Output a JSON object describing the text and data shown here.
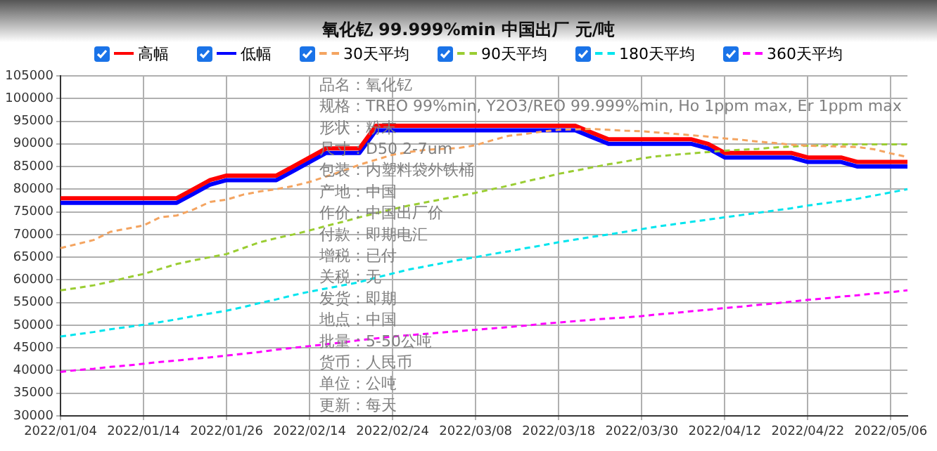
{
  "chart_data": {
    "type": "line",
    "title": "氧化钇 99.999%min 中国出厂 元/吨",
    "categories": [
      "2022/01/04",
      null,
      null,
      null,
      null,
      "2022/01/14",
      null,
      null,
      null,
      null,
      "2022/01/26",
      null,
      null,
      null,
      null,
      "2022/02/14",
      null,
      null,
      null,
      null,
      "2022/02/24",
      null,
      null,
      null,
      null,
      "2022/03/08",
      null,
      null,
      null,
      null,
      "2022/03/18",
      null,
      null,
      null,
      null,
      "2022/03/30",
      null,
      null,
      null,
      null,
      "2022/04/12",
      null,
      null,
      null,
      null,
      "2022/04/22",
      null,
      null,
      null,
      null,
      "2022/05/06",
      null
    ],
    "ylim": [
      30000,
      105000
    ],
    "yticks": [
      30000,
      35000,
      40000,
      45000,
      50000,
      55000,
      60000,
      65000,
      70000,
      75000,
      80000,
      85000,
      90000,
      95000,
      100000,
      105000
    ],
    "grid": true,
    "legend": "top",
    "marker": "none",
    "series": [
      {
        "name": "高幅",
        "color": "#ff0000",
        "line_style": "solid",
        "values": [
          78000,
          78000,
          78000,
          78000,
          78000,
          78000,
          78000,
          78000,
          80000,
          82000,
          83000,
          83000,
          83000,
          83000,
          85000,
          87000,
          89000,
          89000,
          89000,
          94000,
          94000,
          94000,
          94000,
          94000,
          94000,
          94000,
          94000,
          94000,
          94000,
          94000,
          94000,
          94000,
          92500,
          91000,
          91000,
          91000,
          91000,
          91000,
          91000,
          90000,
          88000,
          88000,
          88000,
          88000,
          88000,
          87000,
          87000,
          87000,
          86000,
          86000,
          86000,
          86000
        ]
      },
      {
        "name": "低幅",
        "color": "#0000ff",
        "line_style": "solid",
        "values": [
          77000,
          77000,
          77000,
          77000,
          77000,
          77000,
          77000,
          77000,
          79000,
          81000,
          82000,
          82000,
          82000,
          82000,
          84000,
          86000,
          88000,
          88000,
          88000,
          93000,
          93000,
          93000,
          93000,
          93000,
          93000,
          93000,
          93000,
          93000,
          93000,
          93000,
          93000,
          93000,
          91500,
          90000,
          90000,
          90000,
          90000,
          90000,
          90000,
          89000,
          87000,
          87000,
          87000,
          87000,
          87000,
          86000,
          86000,
          86000,
          85000,
          85000,
          85000,
          85000
        ]
      },
      {
        "name": "30天平均",
        "color": "#f4a460",
        "line_style": "dashed",
        "values": [
          67000,
          67900,
          68800,
          70600,
          71300,
          72000,
          73800,
          74200,
          75500,
          77200,
          77700,
          78800,
          79500,
          80000,
          80700,
          81600,
          82800,
          84000,
          85400,
          86500,
          87600,
          88200,
          88700,
          88900,
          89100,
          89700,
          90800,
          91800,
          92200,
          92700,
          93100,
          93200,
          93300,
          93100,
          92900,
          92800,
          92500,
          92200,
          91900,
          91600,
          91200,
          90900,
          90500,
          90200,
          89800,
          89600,
          89500,
          89400,
          89300,
          88800,
          87900,
          87100
        ]
      },
      {
        "name": "90天平均",
        "color": "#9acd32",
        "line_style": "dashed",
        "values": [
          57700,
          58200,
          58800,
          59600,
          60500,
          61300,
          62400,
          63500,
          64300,
          65000,
          65700,
          67000,
          68300,
          69200,
          70000,
          70900,
          71900,
          72800,
          73800,
          74700,
          75600,
          76400,
          77100,
          77800,
          78500,
          79200,
          80000,
          80800,
          81700,
          82500,
          83400,
          84100,
          84800,
          85500,
          86100,
          86800,
          87300,
          87600,
          87900,
          88200,
          88500,
          88700,
          88900,
          89200,
          89400,
          89600,
          89700,
          89900,
          89900,
          89900,
          89900,
          89900
        ]
      },
      {
        "name": "180天平均",
        "color": "#00e5ee",
        "line_style": "dashed",
        "values": [
          47500,
          48000,
          48500,
          49100,
          49600,
          50100,
          50700,
          51300,
          52000,
          52600,
          53200,
          54000,
          54900,
          55700,
          56600,
          57400,
          58100,
          58800,
          59500,
          60500,
          61400,
          62300,
          63000,
          63700,
          64400,
          65000,
          65700,
          66300,
          67000,
          67600,
          68300,
          68900,
          69500,
          70000,
          70600,
          71200,
          71800,
          72300,
          72800,
          73300,
          73800,
          74300,
          74800,
          75300,
          75800,
          76400,
          76900,
          77400,
          77900,
          78600,
          79300,
          80000
        ]
      },
      {
        "name": "360天平均",
        "color": "#ff00ff",
        "line_style": "dashed",
        "values": [
          39700,
          40100,
          40400,
          40800,
          41100,
          41500,
          41900,
          42200,
          42600,
          42900,
          43300,
          43700,
          44100,
          44600,
          45000,
          45400,
          45800,
          46200,
          46700,
          47100,
          47500,
          47800,
          48100,
          48400,
          48700,
          49000,
          49300,
          49600,
          49900,
          50300,
          50600,
          50900,
          51200,
          51500,
          51700,
          52000,
          52400,
          52700,
          53100,
          53400,
          53800,
          54100,
          54500,
          54800,
          55200,
          55600,
          55900,
          56300,
          56600,
          57000,
          57300,
          57700
        ]
      }
    ],
    "annotations": [
      "品名：氧化钇",
      "规格：TREO 99%min, Y2O3/REO 99.999%min, Ho 1ppm max, Er 1ppm max",
      "形状：粉末",
      "尺寸：D50 2-7um",
      "包装：内塑料袋外铁桶",
      "产地：中国",
      "作价：中国出厂价",
      "付款：即期电汇",
      "增税：已付",
      "关税：无",
      "发货：即期",
      "地点：中国",
      "批量：5-50公吨",
      "货币：人民币",
      "单位：公吨",
      "更新：每天"
    ]
  }
}
